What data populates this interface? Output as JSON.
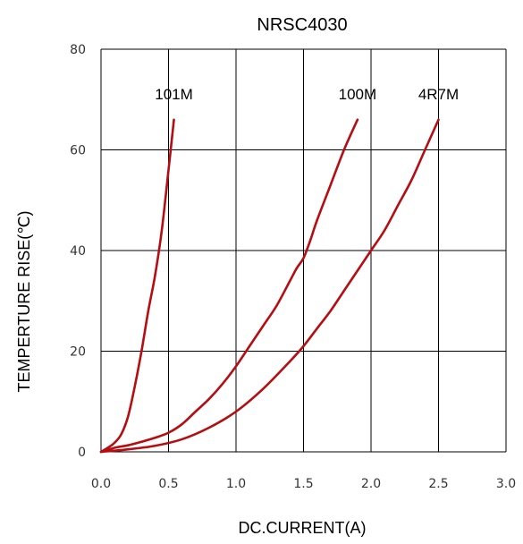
{
  "chart_data": {
    "type": "line",
    "title": "NRSC4030",
    "xlabel": "DC.CURRENT(A)",
    "ylabel": "TEMPERTURE RISE(℃)",
    "xlim": [
      0,
      3.0
    ],
    "ylim": [
      0,
      80
    ],
    "xticks": [
      "0.0",
      "0.5",
      "1.0",
      "1.5",
      "2.0",
      "2.5",
      "3.0"
    ],
    "yticks": [
      "0",
      "20",
      "40",
      "60",
      "80"
    ],
    "grid": true,
    "series": [
      {
        "name": "101M",
        "color": "#b50d12",
        "x": [
          0.0,
          0.05,
          0.1,
          0.15,
          0.2,
          0.25,
          0.3,
          0.35,
          0.4,
          0.45,
          0.5,
          0.54
        ],
        "y": [
          0,
          0.8,
          1.8,
          3.5,
          7,
          13,
          20,
          28,
          35,
          44,
          56,
          66
        ]
      },
      {
        "name": "100M",
        "color": "#b50d12",
        "x": [
          0.0,
          0.1,
          0.2,
          0.3,
          0.4,
          0.5,
          0.6,
          0.7,
          0.8,
          0.9,
          1.0,
          1.1,
          1.2,
          1.3,
          1.4,
          1.45,
          1.5,
          1.55,
          1.6,
          1.7,
          1.8,
          1.9
        ],
        "y": [
          0,
          0.8,
          1.3,
          2,
          2.8,
          3.8,
          5.5,
          8,
          10.5,
          13.5,
          17,
          21,
          25,
          29,
          34,
          36.5,
          38.5,
          42,
          46,
          53,
          60,
          66
        ]
      },
      {
        "name": "4R7M",
        "color": "#b50d12",
        "x": [
          0.0,
          0.2,
          0.4,
          0.6,
          0.8,
          1.0,
          1.2,
          1.4,
          1.5,
          1.6,
          1.7,
          1.8,
          1.9,
          2.0,
          2.1,
          2.2,
          2.3,
          2.4,
          2.5
        ],
        "y": [
          0,
          0.5,
          1.2,
          2.5,
          4.8,
          8,
          12.5,
          18,
          21,
          24.5,
          28,
          32,
          36,
          40,
          44,
          49,
          54,
          60,
          66
        ]
      }
    ]
  }
}
